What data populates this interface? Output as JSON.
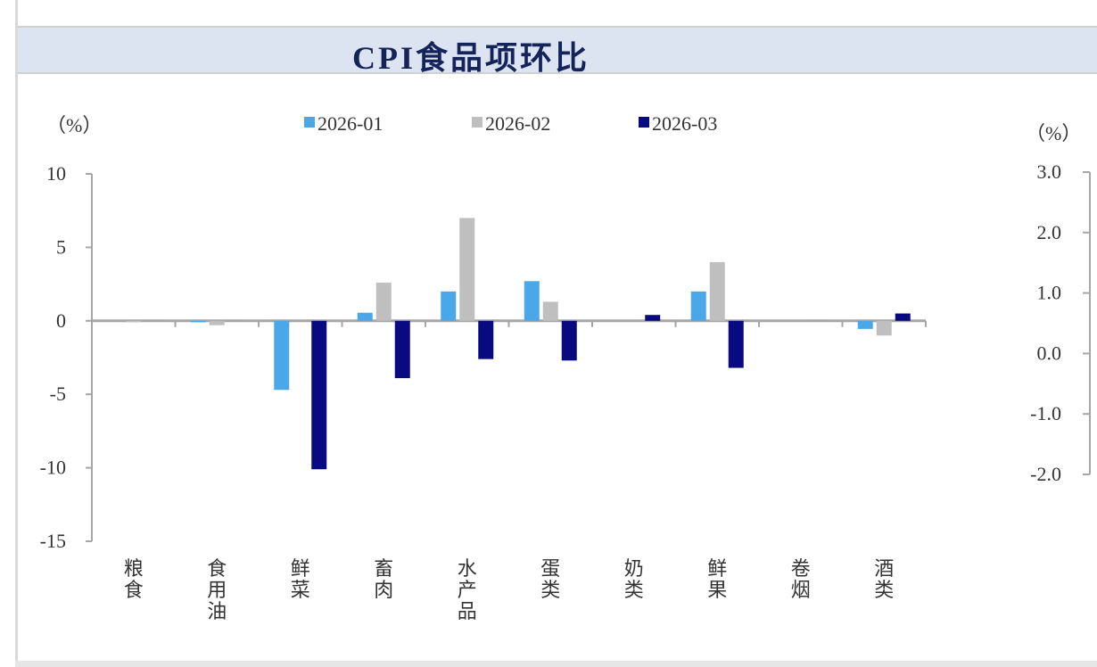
{
  "chart_data": {
    "type": "bar",
    "title": "CPI食品项环比",
    "ylabel": "（%）",
    "y2label": "（%）",
    "ylim": [
      -15,
      10
    ],
    "yticks": [
      10,
      5,
      0,
      -5,
      -10,
      -15
    ],
    "y2lim": [
      -2.0,
      3.0
    ],
    "y2ticks": [
      "3.0",
      "2.0",
      "1.0",
      "0.0",
      "-1.0",
      "-2.0"
    ],
    "legend_position": "top",
    "grid": false,
    "categories": [
      "粮食",
      "食用油",
      "鲜菜",
      "畜肉",
      "水产品",
      "蛋类",
      "奶类",
      "鲜果",
      "卷烟",
      "酒类"
    ],
    "series": [
      {
        "name": "2026-01",
        "color": "#4aa8e8",
        "values": [
          0.0,
          -0.1,
          -4.7,
          0.55,
          2.0,
          2.7,
          0.0,
          2.0,
          0.0,
          -0.55
        ]
      },
      {
        "name": "2026-02",
        "color": "#bfbfbf",
        "values": [
          -0.1,
          -0.3,
          0.0,
          2.6,
          7.0,
          1.3,
          0.0,
          4.0,
          0.0,
          -1.0
        ]
      },
      {
        "name": "2026-03",
        "color": "#0a0a80",
        "values": [
          0.0,
          0.0,
          -10.1,
          -3.9,
          -2.6,
          -2.7,
          0.4,
          -3.2,
          0.0,
          0.5
        ]
      }
    ]
  }
}
